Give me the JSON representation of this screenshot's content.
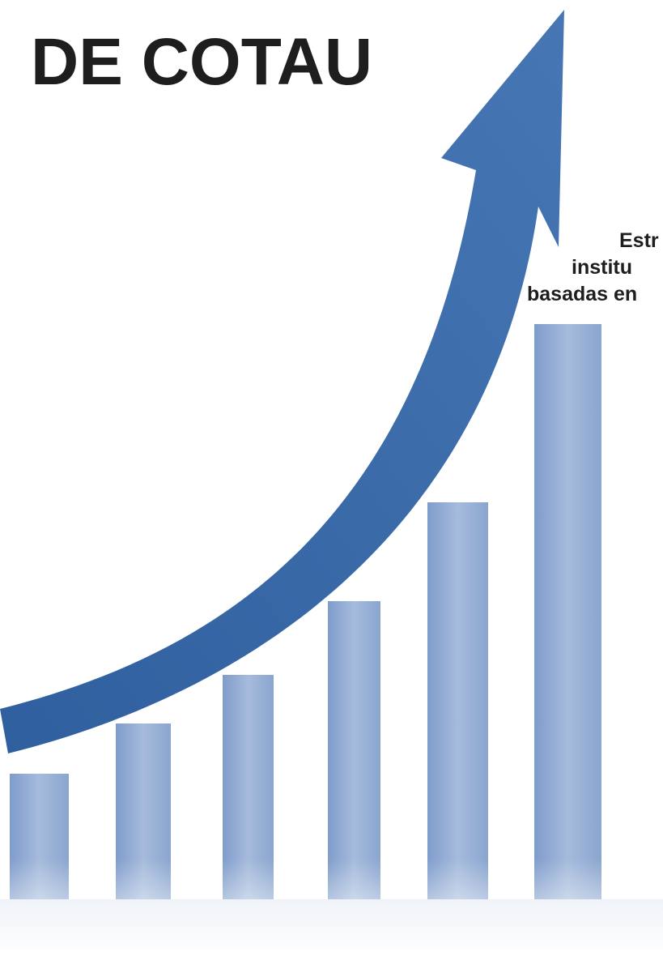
{
  "header": {
    "title": "DE COTAU"
  },
  "side_text": {
    "lines": [
      "Estr",
      "institu",
      "basadas en"
    ]
  }
}
